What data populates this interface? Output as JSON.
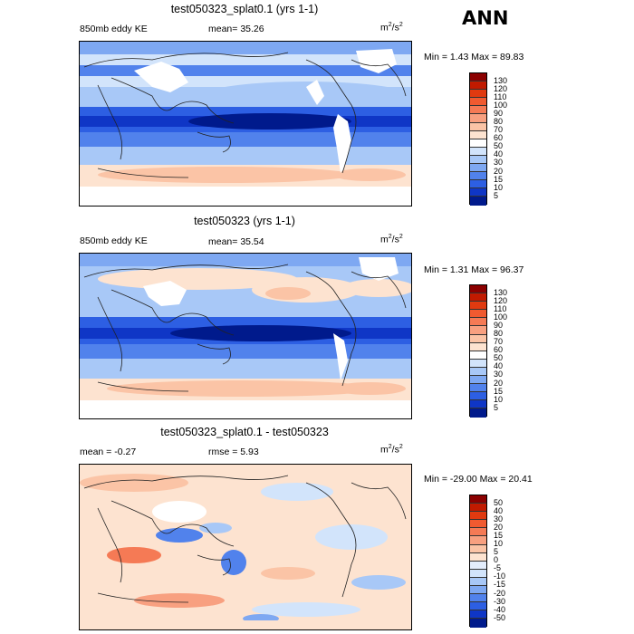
{
  "corner_label": "ANN",
  "panels": [
    {
      "title": "test050323_splat0.1 (yrs 1-1)",
      "left_label": "850mb eddy KE",
      "center_label": "mean=  35.26",
      "units_base": "m",
      "units_exp1": "2",
      "units_mid": "/s",
      "units_exp2": "2",
      "minmax": "Min =    1.43 Max =   89.83"
    },
    {
      "title": "test050323 (yrs 1-1)",
      "left_label": "850mb eddy KE",
      "center_label": "mean=  35.54",
      "units_base": "m",
      "units_exp1": "2",
      "units_mid": "/s",
      "units_exp2": "2",
      "minmax": "Min =    1.31 Max =   96.37"
    },
    {
      "title": "test050323_splat0.1 - test050323",
      "left_label": "mean =  -0.27",
      "center_label": "rmse =   5.93",
      "units_base": "m",
      "units_exp1": "2",
      "units_mid": "/s",
      "units_exp2": "2",
      "minmax": "Min = -29.00 Max =   20.41"
    }
  ],
  "colorbar_abs": {
    "levels": [
      "130",
      "120",
      "110",
      "100",
      "90",
      "80",
      "70",
      "60",
      "50",
      "40",
      "30",
      "20",
      "15",
      "10",
      "5"
    ],
    "colors": [
      "#8b0000",
      "#c11a00",
      "#e03a10",
      "#f05a30",
      "#f57a55",
      "#f8a080",
      "#fbc4a6",
      "#fde3d0",
      "#ffffff",
      "#d2e4fb",
      "#a8c8f7",
      "#7ea8f2",
      "#5182ec",
      "#2d5fe3",
      "#0f36c6",
      "#001a8c"
    ]
  },
  "colorbar_diff": {
    "levels": [
      "50",
      "40",
      "30",
      "20",
      "15",
      "10",
      "5",
      "0",
      "-5",
      "-10",
      "-15",
      "-20",
      "-30",
      "-40",
      "-50"
    ],
    "colors": [
      "#8b0000",
      "#c11a00",
      "#e03a10",
      "#f05a30",
      "#f57a55",
      "#f8a080",
      "#fbc4a6",
      "#fde3d0",
      "#e3edfc",
      "#d2e4fb",
      "#a8c8f7",
      "#7ea8f2",
      "#5182ec",
      "#2d5fe3",
      "#0f36c6",
      "#001a8c"
    ]
  }
}
